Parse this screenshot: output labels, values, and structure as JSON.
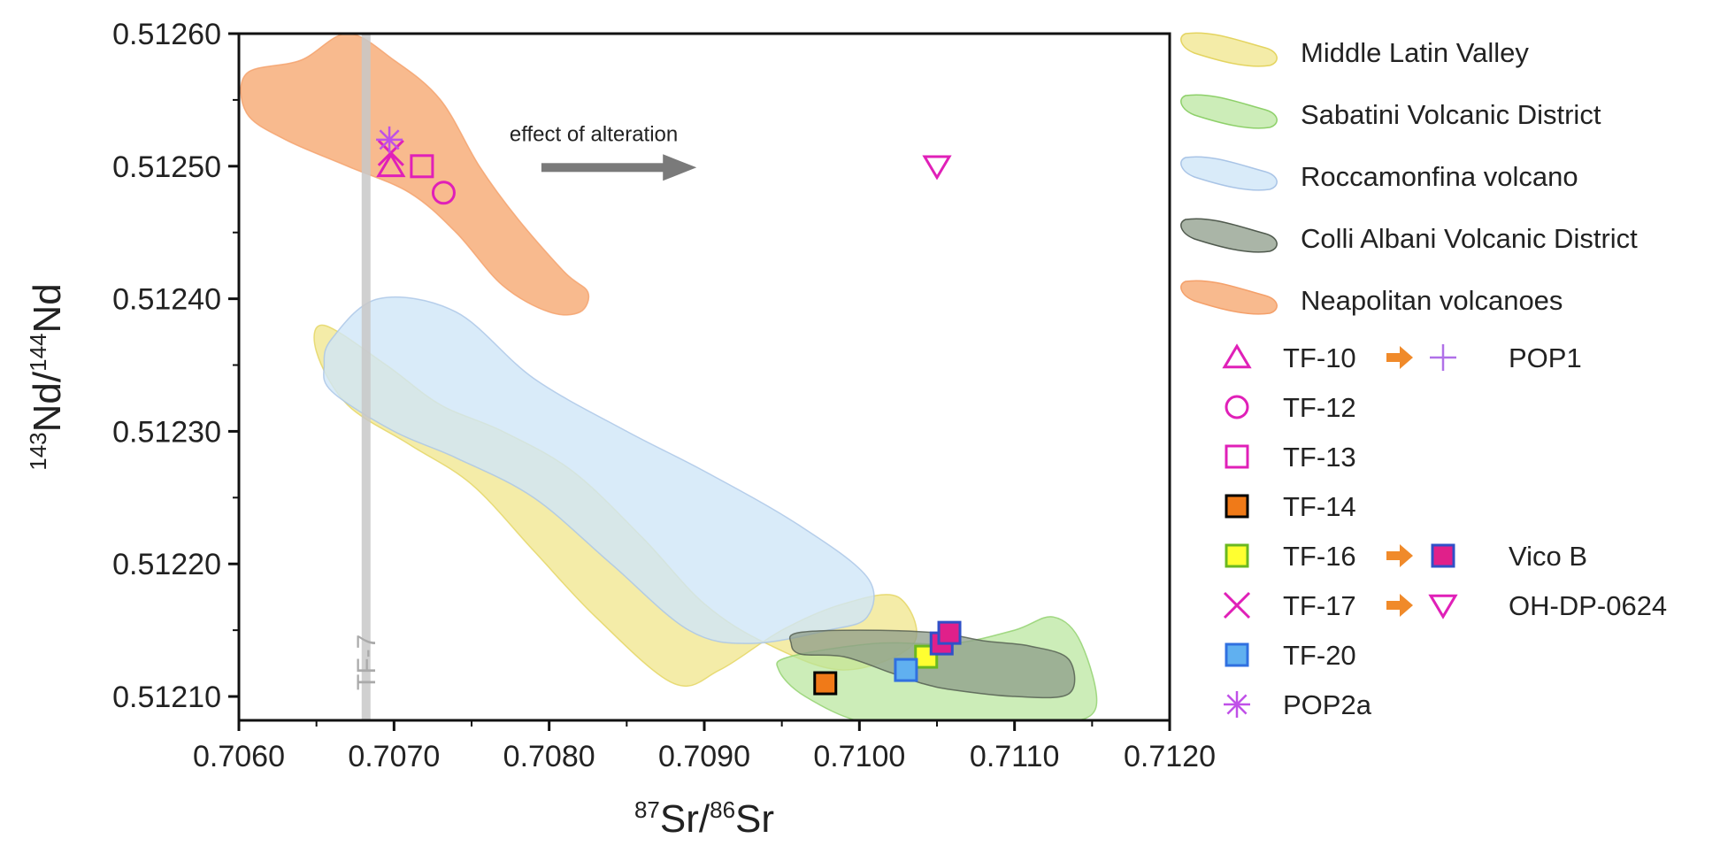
{
  "chart_data": {
    "type": "scatter",
    "xlabel": {
      "sup1": "87",
      "t1": "Sr/",
      "sup2": "86",
      "t2": "Sr"
    },
    "ylabel": {
      "sup1": "143",
      "t1": "Nd/",
      "sup2": "144",
      "t2": "Nd"
    },
    "xlim": [
      0.706,
      0.712
    ],
    "ylim": [
      0.512082,
      0.5126
    ],
    "xticks": [
      "0.7060",
      "0.7070",
      "0.7080",
      "0.7090",
      "0.7100",
      "0.7110",
      "0.7120"
    ],
    "yticks": [
      "0.51210",
      "0.51220",
      "0.51230",
      "0.51240",
      "0.51250",
      "0.51260"
    ],
    "grid": false,
    "legend_position": "right",
    "fields": [
      {
        "name": "Middle Latin Valley",
        "fill": "#eee27a",
        "stroke": "#e4d460",
        "opacity": 0.65,
        "polygon": [
          [
            0.70655,
            0.51238
          ],
          [
            0.70695,
            0.51235
          ],
          [
            0.7073,
            0.51232
          ],
          [
            0.7077,
            0.5123
          ],
          [
            0.70815,
            0.51227
          ],
          [
            0.7086,
            0.51222
          ],
          [
            0.709,
            0.51217
          ],
          [
            0.7094,
            0.51214
          ],
          [
            0.7099,
            0.51212
          ],
          [
            0.71035,
            0.51214
          ],
          [
            0.71025,
            0.512175
          ],
          [
            0.7099,
            0.51217
          ],
          [
            0.7095,
            0.51215
          ],
          [
            0.7091,
            0.51212
          ],
          [
            0.7088,
            0.51211
          ],
          [
            0.7083,
            0.51216
          ],
          [
            0.7079,
            0.51221
          ],
          [
            0.7075,
            0.51226
          ],
          [
            0.7071,
            0.51229
          ],
          [
            0.7067,
            0.51232
          ],
          [
            0.7065,
            0.51236
          ]
        ]
      },
      {
        "name": "Sabatini Volcanic District",
        "fill": "#b6e59a",
        "stroke": "#8ed06a",
        "opacity": 0.7,
        "polygon": [
          [
            0.70955,
            0.51213
          ],
          [
            0.7101,
            0.51214
          ],
          [
            0.7106,
            0.51214
          ],
          [
            0.711,
            0.51215
          ],
          [
            0.71125,
            0.51216
          ],
          [
            0.71143,
            0.51214
          ],
          [
            0.71152,
            0.51209
          ],
          [
            0.7112,
            0.51208
          ],
          [
            0.7106,
            0.51208
          ],
          [
            0.71005,
            0.51208
          ],
          [
            0.70965,
            0.5121
          ],
          [
            0.70948,
            0.51212
          ]
        ]
      },
      {
        "name": "Roccamonfina volcano",
        "fill": "#cfe6f8",
        "stroke": "#a9c4e6",
        "opacity": 0.8,
        "polygon": [
          [
            0.7066,
            0.51237
          ],
          [
            0.7069,
            0.5124
          ],
          [
            0.7074,
            0.51239
          ],
          [
            0.7079,
            0.51234
          ],
          [
            0.7085,
            0.5123
          ],
          [
            0.709,
            0.51227
          ],
          [
            0.7096,
            0.51223
          ],
          [
            0.71005,
            0.51219
          ],
          [
            0.71005,
            0.51216
          ],
          [
            0.7098,
            0.51215
          ],
          [
            0.7093,
            0.51214
          ],
          [
            0.7089,
            0.51215
          ],
          [
            0.7084,
            0.5122
          ],
          [
            0.7079,
            0.51225
          ],
          [
            0.7074,
            0.51228
          ],
          [
            0.707,
            0.5123
          ],
          [
            0.7066,
            0.51233
          ],
          [
            0.70655,
            0.51235
          ]
        ]
      },
      {
        "name": "Colli Albani Volcanic District",
        "fill": "#8e9c8a",
        "stroke": "#505a4e",
        "opacity": 0.75,
        "polygon": [
          [
            0.7096,
            0.512148
          ],
          [
            0.71,
            0.51215
          ],
          [
            0.7105,
            0.512148
          ],
          [
            0.7108,
            0.512142
          ],
          [
            0.7111,
            0.512138
          ],
          [
            0.71135,
            0.512128
          ],
          [
            0.71135,
            0.512102
          ],
          [
            0.711,
            0.5121
          ],
          [
            0.7106,
            0.512105
          ],
          [
            0.7104,
            0.51211
          ],
          [
            0.7102,
            0.512118
          ],
          [
            0.7099,
            0.51213
          ],
          [
            0.70962,
            0.512132
          ],
          [
            0.70956,
            0.51214
          ]
        ]
      },
      {
        "name": "Neapolitan volcanoes",
        "fill": "#f7b282",
        "stroke": "#f4a06a",
        "opacity": 0.9,
        "polygon": [
          [
            0.70605,
            0.51257
          ],
          [
            0.7064,
            0.51258
          ],
          [
            0.7067,
            0.5126
          ],
          [
            0.707,
            0.51258
          ],
          [
            0.7073,
            0.51255
          ],
          [
            0.70755,
            0.5125
          ],
          [
            0.7078,
            0.51246
          ],
          [
            0.7081,
            0.51242
          ],
          [
            0.70825,
            0.512405
          ],
          [
            0.7082,
            0.51239
          ],
          [
            0.708,
            0.51239
          ],
          [
            0.7077,
            0.51241
          ],
          [
            0.7074,
            0.51245
          ],
          [
            0.7071,
            0.51248
          ],
          [
            0.7067,
            0.5125
          ],
          [
            0.7063,
            0.51252
          ],
          [
            0.70605,
            0.51254
          ]
        ]
      }
    ],
    "series": [
      {
        "name": "TF-10",
        "marker": "triangle",
        "color": "#e020b8",
        "fill": "none",
        "points": [
          [
            0.70698,
            0.5125
          ]
        ]
      },
      {
        "name": "TF-12",
        "marker": "circle",
        "color": "#e020b8",
        "fill": "none",
        "points": [
          [
            0.70732,
            0.51248
          ]
        ]
      },
      {
        "name": "TF-13",
        "marker": "square",
        "color": "#e020b8",
        "fill": "none",
        "points": [
          [
            0.70718,
            0.5125
          ]
        ]
      },
      {
        "name": "TF-14",
        "marker": "square",
        "color": "#000000",
        "fill": "#f07a18",
        "points": [
          [
            0.70978,
            0.51211
          ]
        ]
      },
      {
        "name": "TF-16",
        "marker": "square",
        "color": "#6ab820",
        "fill": "#ffff30",
        "points": [
          [
            0.71043,
            0.51213
          ]
        ]
      },
      {
        "name": "TF-17",
        "marker": "x",
        "color": "#e020b8",
        "fill": "none",
        "points": [
          [
            0.70698,
            0.51251
          ]
        ]
      },
      {
        "name": "TF-20",
        "marker": "square",
        "color": "#3070e0",
        "fill": "#60b0f0",
        "points": [
          [
            0.7103,
            0.51212
          ]
        ]
      },
      {
        "name": "POP2a",
        "marker": "asterisk",
        "color": "#c050e8",
        "fill": "none",
        "points": [
          [
            0.70697,
            0.51252
          ]
        ]
      },
      {
        "name": "POP1",
        "marker": "plus",
        "color": "#b070e8",
        "fill": "none",
        "points": []
      },
      {
        "name": "Vico B",
        "marker": "square",
        "color": "#3050c8",
        "fill": "#e0208a",
        "points": [
          [
            0.71053,
            0.51214
          ],
          [
            0.71058,
            0.512148
          ]
        ]
      },
      {
        "name": "OH-DP-0624",
        "marker": "triangle-down",
        "color": "#e020b8",
        "fill": "none",
        "points": [
          [
            0.7105,
            0.5125
          ]
        ]
      }
    ],
    "annotations": {
      "alteration_text": "effect of alteration",
      "tf7_label": "TF-7",
      "tf7_x": 0.70682,
      "arrow_from": [
        0.70795,
        0.512499
      ],
      "arrow_to": [
        0.70895,
        0.512499
      ]
    },
    "legend_fields": [
      "Middle Latin Valley",
      "Sabatini Volcanic District",
      "Roccamonfina volcano",
      "Colli Albani Volcanic District",
      "Neapolitan volcanoes"
    ],
    "legend_samples": [
      {
        "name": "TF-10",
        "pair": "POP1"
      },
      {
        "name": "TF-12"
      },
      {
        "name": "TF-13"
      },
      {
        "name": "TF-14"
      },
      {
        "name": "TF-16",
        "pair": "Vico B"
      },
      {
        "name": "TF-17",
        "pair": "OH-DP-0624"
      },
      {
        "name": "TF-20"
      },
      {
        "name": "POP2a"
      }
    ],
    "arrow_color": "#f08a2a"
  }
}
